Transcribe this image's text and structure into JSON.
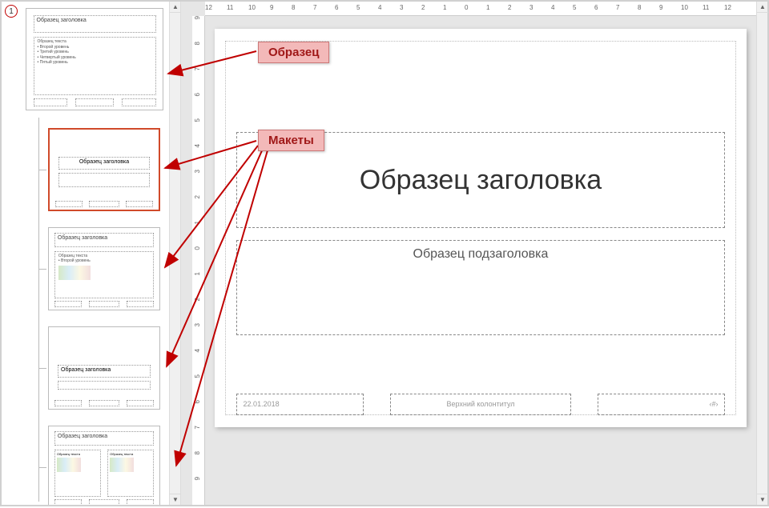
{
  "annotations": {
    "master_label": "Образец",
    "layouts_label": "Макеты",
    "master_callout_bg": "#f3b9b9",
    "master_callout_color": "#a01818",
    "arrow_color": "#c00000"
  },
  "master_number": "1",
  "thumbs": {
    "master": {
      "title": "Образец заголовка",
      "body_lines": [
        "Образец текста",
        "• Второй уровень",
        "  • Третий уровень",
        "    • Четвертый уровень",
        "      • Пятый уровень"
      ]
    },
    "layouts": [
      {
        "title": "Образец заголовка",
        "selected": true,
        "kind": "title"
      },
      {
        "title": "Образец заголовка",
        "selected": false,
        "kind": "content"
      },
      {
        "title": "Образец заголовка",
        "selected": false,
        "kind": "section"
      },
      {
        "title": "Образец заголовка",
        "selected": false,
        "kind": "two-content"
      }
    ]
  },
  "slide": {
    "title_placeholder": "Образец заголовка",
    "subtitle_placeholder": "Образец подзаголовка",
    "footer_date": "22.01.2018",
    "footer_center": "Верхний колонтитул",
    "footer_page": "‹#›"
  },
  "ruler": {
    "h_labels": [
      "12",
      "11",
      "10",
      "9",
      "8",
      "7",
      "6",
      "5",
      "4",
      "3",
      "2",
      "1",
      "0",
      "1",
      "2",
      "3",
      "4",
      "5",
      "6",
      "7",
      "8",
      "9",
      "10",
      "11",
      "12"
    ],
    "v_labels": [
      "9",
      "8",
      "7",
      "6",
      "5",
      "4",
      "3",
      "2",
      "1",
      "0",
      "1",
      "2",
      "3",
      "4",
      "5",
      "6",
      "7",
      "8",
      "9"
    ]
  },
  "colors": {
    "selected_border": "#d04a2a",
    "stage_bg": "#ffffff",
    "editor_bg": "#e6e6e6"
  }
}
